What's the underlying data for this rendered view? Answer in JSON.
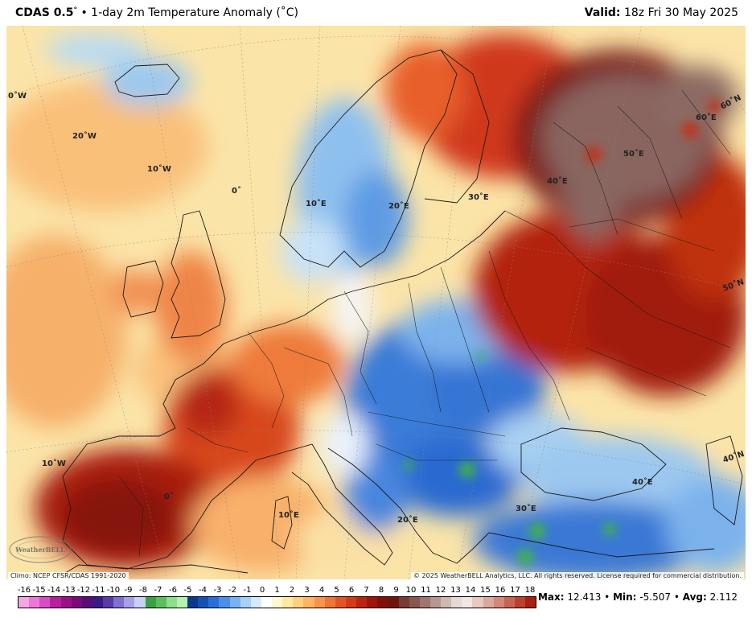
{
  "header": {
    "model": "CDAS 0.5",
    "degree_symbol": "°",
    "separator": "•",
    "title": "1-day 2m Temperature Anomaly (˚C)",
    "valid_label": "Valid:",
    "valid_time": "18z Fri 30 May 2025"
  },
  "map": {
    "region": "Europe",
    "graticule_labels": [
      "0˚W",
      "20˚W",
      "10˚W",
      "0˚",
      "10˚E",
      "20˚E",
      "30˚E",
      "40˚E",
      "50˚E",
      "60˚E",
      "60˚N",
      "50˚N",
      "40˚N",
      "10˚W",
      "0˚",
      "10˚E",
      "20˚E",
      "30˚E",
      "40˚E"
    ],
    "colors": {
      "sea_neutral": "#fdf2c9",
      "warm_light": "#f9c27c",
      "warm_mid": "#ee7a3a",
      "hot": "#c42a13",
      "very_hot": "#8e1b10",
      "extreme": "#7a5350",
      "cool_light": "#cfe7f7",
      "cool_mid": "#7ab3ea",
      "cold": "#2e6fd0",
      "green": "#3fb44a"
    }
  },
  "footer": {
    "climo": "Climo: NCEP CFSR/CDAS 1991-2020",
    "copyright": "© 2025 WeatherBELL Analytics, LLC. All rights reserved. License required for commercial distribution.",
    "logo_text": "WeatherBELL"
  },
  "colorbar": {
    "labels": [
      "-16",
      "-15",
      "-14",
      "-13",
      "-12",
      "-11",
      "-10",
      "-9",
      "-8",
      "-7",
      "-6",
      "-5",
      "-4",
      "-3",
      "-2",
      "-1",
      "0",
      "1",
      "2",
      "3",
      "4",
      "5",
      "6",
      "7",
      "8",
      "9",
      "10",
      "11",
      "12",
      "13",
      "14",
      "15",
      "16",
      "17",
      "18"
    ],
    "colors": [
      "#f5a6e6",
      "#ea78d8",
      "#d64ec6",
      "#b8209e",
      "#9a0f8a",
      "#7b0a7c",
      "#5a0c78",
      "#3a1a86",
      "#5a3aa8",
      "#7f6fd0",
      "#a8a0e6",
      "#c8d0f4",
      "#3aa045",
      "#5cc05a",
      "#8ae08a",
      "#b8f0b0",
      "#0a3a8e",
      "#1452b8",
      "#2a6fd6",
      "#4a90e8",
      "#78b2f0",
      "#a8d0f8",
      "#d4eafb",
      "#ffffff",
      "#fff8d0",
      "#ffe8a0",
      "#ffd080",
      "#fdb464",
      "#f8944a",
      "#f07436",
      "#e55424",
      "#d43a18",
      "#bc2410",
      "#a0140a",
      "#84100a",
      "#6e140e",
      "#7a3a34",
      "#8c5650",
      "#a07670",
      "#b8968e",
      "#d0b8b0",
      "#e6d8d2",
      "#f0e6e2",
      "#e8c8c0",
      "#dca89c",
      "#d48878",
      "#c86454",
      "#bc4030",
      "#a82010"
    ],
    "unit": "˚C"
  },
  "stats": {
    "max_label": "Max:",
    "max_value": "12.413",
    "min_label": "Min:",
    "min_value": "-5.507",
    "avg_label": "Avg:",
    "avg_value": "2.112",
    "sep": "•"
  }
}
